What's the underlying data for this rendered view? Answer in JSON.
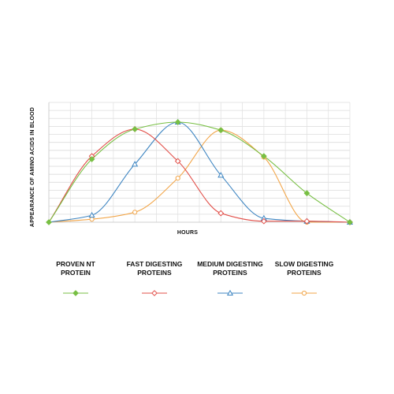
{
  "chart_data": {
    "type": "line",
    "title": "",
    "xlabel": "HOURS",
    "ylabel": "APPEARANCE OF AMINO ACIDS IN BLOOD",
    "x": [
      0,
      1,
      2,
      3,
      4,
      5,
      6,
      7
    ],
    "ylim": [
      0,
      100
    ],
    "grid": true,
    "legend_position": "bottom",
    "series": [
      {
        "name": "PROVEN NT\nPROTEIN",
        "color": "#78bf44",
        "marker": "diamond-filled",
        "x": [
          0,
          1,
          2,
          3,
          4,
          5,
          6,
          7
        ],
        "values": [
          0,
          63,
          93,
          100,
          92,
          66,
          29,
          0
        ]
      },
      {
        "name": "FAST DIGESTING\nPROTEINS",
        "color": "#e2504a",
        "marker": "diamond-open",
        "x": [
          0,
          1,
          2,
          3,
          4,
          5,
          6,
          7
        ],
        "values": [
          0,
          66,
          93,
          61,
          9,
          1,
          1,
          0
        ]
      },
      {
        "name": "MEDIUM DIGESTING\nPROTEINS",
        "color": "#3f86c2",
        "marker": "triangle-open",
        "x": [
          0,
          1,
          2,
          3,
          4,
          5,
          6,
          7
        ],
        "values": [
          0,
          7,
          58,
          100,
          47,
          4,
          1,
          0
        ]
      },
      {
        "name": "SLOW DIGESTING\nPROTEINS",
        "color": "#f2a64a",
        "marker": "circle-open",
        "x": [
          0,
          1,
          2,
          3,
          4,
          5,
          6,
          7
        ],
        "values": [
          0,
          3,
          10,
          44,
          92,
          65,
          0,
          0
        ]
      }
    ]
  }
}
